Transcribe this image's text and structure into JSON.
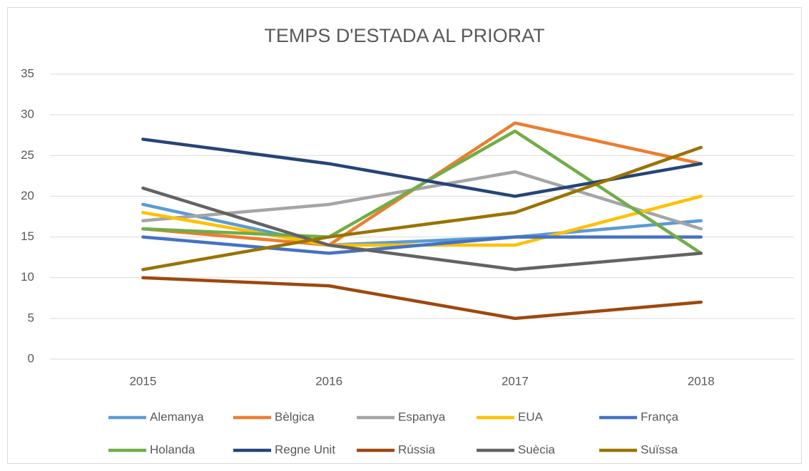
{
  "chart_data": {
    "type": "line",
    "title": "TEMPS D'ESTADA AL PRIORAT",
    "categories": [
      "2015",
      "2016",
      "2017",
      "2018"
    ],
    "series": [
      {
        "name": "Alemanya",
        "color": "#5b9bd5",
        "values": [
          19,
          14,
          15,
          17
        ]
      },
      {
        "name": "Bèlgica",
        "color": "#ed7d31",
        "values": [
          16,
          14,
          29,
          24
        ]
      },
      {
        "name": "Espanya",
        "color": "#a5a5a5",
        "values": [
          17,
          19,
          23,
          16
        ]
      },
      {
        "name": "EUA",
        "color": "#ffc000",
        "values": [
          18,
          14,
          14,
          20
        ]
      },
      {
        "name": "França",
        "color": "#4472c4",
        "values": [
          15,
          13,
          15,
          15
        ]
      },
      {
        "name": "Holanda",
        "color": "#70ad47",
        "values": [
          16,
          15,
          28,
          13
        ]
      },
      {
        "name": "Regne Unit",
        "color": "#264478",
        "values": [
          27,
          24,
          20,
          24
        ]
      },
      {
        "name": "Rússia",
        "color": "#9e480e",
        "values": [
          10,
          9,
          5,
          7
        ]
      },
      {
        "name": "Suècia",
        "color": "#636363",
        "values": [
          21,
          14,
          11,
          13
        ]
      },
      {
        "name": "Suïssa",
        "color": "#997300",
        "values": [
          11,
          15,
          18,
          26
        ]
      }
    ],
    "ylim": [
      0,
      35
    ],
    "yticks": [
      0,
      5,
      10,
      15,
      20,
      25,
      30,
      35
    ],
    "grid": true,
    "legend": "bottom"
  }
}
